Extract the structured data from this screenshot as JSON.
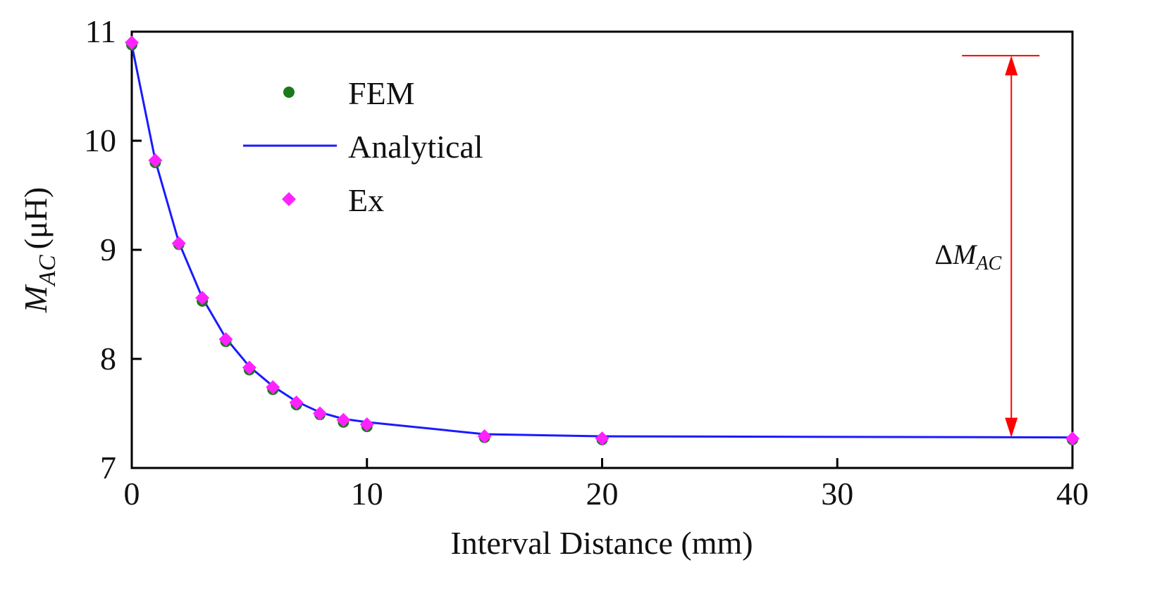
{
  "chart_data": {
    "type": "line",
    "xlabel": "Interval Distance (mm)",
    "ylabel_symbol": "M",
    "ylabel_subscript": "AC",
    "ylabel_unit": "(μH)",
    "xlim": [
      0,
      40
    ],
    "ylim": [
      7,
      11
    ],
    "xticks": [
      0,
      10,
      20,
      30,
      40
    ],
    "yticks": [
      7,
      8,
      9,
      10,
      11
    ],
    "grid": false,
    "legend_position": "top-left",
    "series": [
      {
        "name": "FEM",
        "kind": "scatter",
        "marker": "circle",
        "color": "#1a7a1a",
        "x": [
          0,
          1,
          2,
          3,
          4,
          5,
          6,
          7,
          8,
          9,
          10,
          15,
          20,
          40
        ],
        "y": [
          10.88,
          9.8,
          9.05,
          8.53,
          8.16,
          7.9,
          7.72,
          7.58,
          7.49,
          7.42,
          7.38,
          7.28,
          7.26,
          7.26
        ]
      },
      {
        "name": "Analytical",
        "kind": "line",
        "color": "#1a1aff",
        "x": [
          0,
          1,
          2,
          3,
          4,
          5,
          6,
          7,
          8,
          9,
          10,
          15,
          20,
          40
        ],
        "y": [
          10.88,
          9.82,
          9.07,
          8.56,
          8.19,
          7.93,
          7.75,
          7.61,
          7.51,
          7.45,
          7.42,
          7.31,
          7.29,
          7.28
        ]
      },
      {
        "name": "Ex",
        "kind": "scatter",
        "marker": "diamond",
        "color": "#ff22ff",
        "x": [
          0,
          1,
          2,
          3,
          4,
          5,
          6,
          7,
          8,
          9,
          10,
          15,
          20,
          40
        ],
        "y": [
          10.9,
          9.82,
          9.06,
          8.56,
          8.18,
          7.92,
          7.74,
          7.6,
          7.5,
          7.44,
          7.4,
          7.29,
          7.27,
          7.27
        ]
      }
    ],
    "annotation": {
      "prefix": "Δ",
      "symbol": "M",
      "subscript": "AC",
      "color": "#ff0000",
      "x": 37.4,
      "y_top": 10.78,
      "y_bottom": 7.28
    }
  }
}
